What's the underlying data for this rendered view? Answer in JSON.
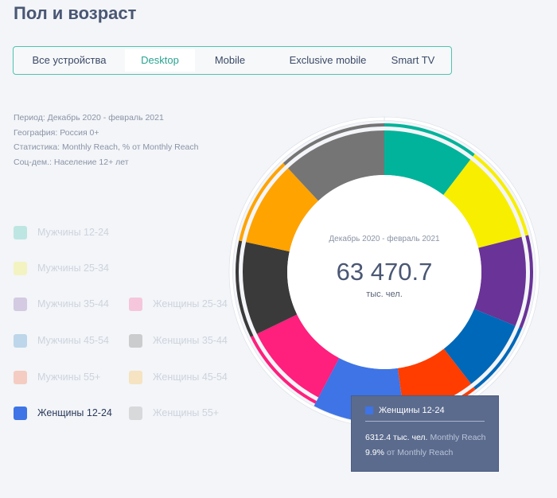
{
  "page": {
    "title": "Пол и возраст"
  },
  "tabs": [
    {
      "label": "Все устройства"
    },
    {
      "label": "Desktop"
    },
    {
      "label": "Mobile"
    },
    {
      "label": "Exclusive mobile"
    },
    {
      "label": "Smart TV"
    }
  ],
  "active_tab": "Desktop",
  "meta": [
    "Период: Декабрь 2020 - февраль 2021",
    "География: Россия 0+",
    "Статистика: Monthly Reach, % от Monthly Reach",
    "Соц-дем.: Население 12+ лет"
  ],
  "legend": [
    {
      "label": "Мужчины 12-24",
      "color": "#00b39a"
    },
    {
      "label": "Мужчины 25-34",
      "color": "#f7ee00"
    },
    {
      "label": "Мужчины 35-44",
      "color": "#6a3397"
    },
    {
      "label": "Мужчины 45-54",
      "color": "#0068b8"
    },
    {
      "label": "Мужчины 55+",
      "color": "#ff3d00"
    },
    {
      "label": "Женщины 12-24",
      "color": "#3e74e6"
    },
    {
      "label": "Женщины 25-34",
      "color": "#ff1f7d"
    },
    {
      "label": "Женщины 35-44",
      "color": "#3a3a3a"
    },
    {
      "label": "Женщины 45-54",
      "color": "#ffa300"
    },
    {
      "label": "Женщины 55+",
      "color": "#757575"
    }
  ],
  "chart_data": {
    "type": "pie",
    "variant": "donut",
    "center_period": "Декабрь 2020 - февраль 2021",
    "center_value": "63 470.7",
    "center_unit": "тыс. чел.",
    "categories": [
      "Мужчины 12-24",
      "Мужчины 25-34",
      "Мужчины 35-44",
      "Мужчины 45-54",
      "Мужчины 55+",
      "Женщины 12-24",
      "Женщины 25-34",
      "Женщины 35-44",
      "Женщины 45-54",
      "Женщины 55+"
    ],
    "colors": [
      "#00b39a",
      "#f7ee00",
      "#6a3397",
      "#0068b8",
      "#ff3d00",
      "#3e74e6",
      "#ff1f7d",
      "#3a3a3a",
      "#ffa300",
      "#757575"
    ],
    "values": [
      10.4,
      10.6,
      10.2,
      8.3,
      8.3,
      9.9,
      10.1,
      10.6,
      9.7,
      11.9
    ],
    "highlighted": "Женщины 12-24",
    "outer_ring": {
      "groups": [
        {
          "name": "Мужчины",
          "color": "#3e74e6"
        },
        {
          "name": "Женщины",
          "color": "#ff1f7d"
        }
      ]
    }
  },
  "tooltip": {
    "title": "Женщины 12-24",
    "value": "6312.4 тыс. чел.",
    "value_label": "Monthly Reach",
    "percent": "9.9%",
    "percent_label": "от Monthly Reach"
  }
}
